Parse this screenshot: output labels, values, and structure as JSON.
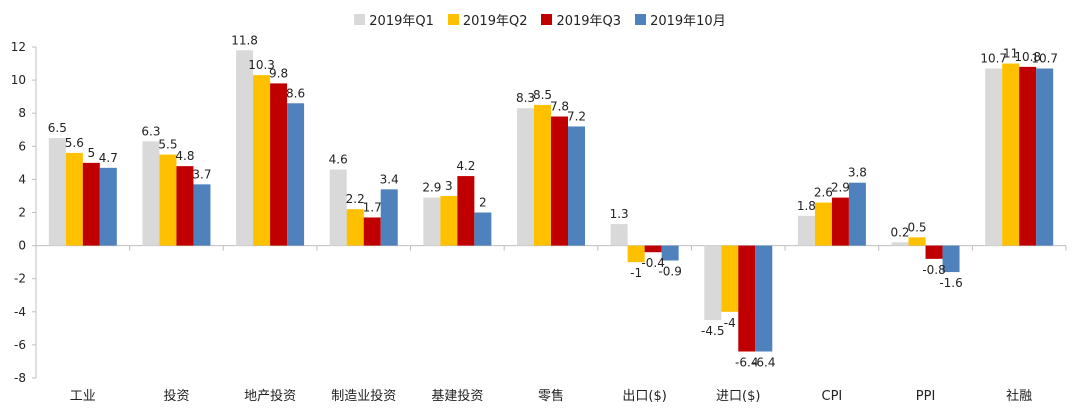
{
  "chart_data": {
    "type": "bar",
    "categories": [
      "工业",
      "投资",
      "地产投资",
      "制造业投资",
      "基建投资",
      "零售",
      "出口($)",
      "进口($)",
      "CPI",
      "PPI",
      "社融"
    ],
    "series": [
      {
        "name": "2019年Q1",
        "color": "#d9d9d9",
        "values": [
          6.5,
          6.3,
          11.8,
          4.6,
          2.9,
          8.3,
          1.3,
          -4.5,
          1.8,
          0.2,
          10.7
        ],
        "labels": [
          "6.5",
          "6.3",
          "11.8",
          "4.6",
          "2.9",
          "8.3",
          "1.3",
          "-4.5",
          "1.8",
          "0.2",
          "10.7"
        ]
      },
      {
        "name": "2019年Q2",
        "color": "#ffc000",
        "values": [
          5.6,
          5.5,
          10.3,
          2.2,
          3.0,
          8.5,
          -1.0,
          -4.0,
          2.6,
          0.5,
          11.0
        ],
        "labels": [
          "5.6",
          "5.5",
          "10.3",
          "2.2",
          "3",
          "8.5",
          "-1",
          "-4",
          "2.6",
          "0.5",
          "11"
        ]
      },
      {
        "name": "2019年Q3",
        "color": "#c00000",
        "values": [
          5.0,
          4.8,
          9.8,
          1.7,
          4.2,
          7.8,
          -0.4,
          -6.4,
          2.9,
          -0.8,
          10.8
        ],
        "labels": [
          "5",
          "4.8",
          "9.8",
          "1.7",
          "4.2",
          "7.8",
          "-0.4",
          "-6.4",
          "2.9",
          "-0.8",
          "10.8"
        ]
      },
      {
        "name": "2019年10月",
        "color": "#4f81bd",
        "values": [
          4.7,
          3.7,
          8.6,
          3.4,
          2.0,
          7.2,
          -0.9,
          -6.4,
          3.8,
          -1.6,
          10.7
        ],
        "labels": [
          "4.7",
          "3.7",
          "8.6",
          "3.4",
          "2",
          "7.2",
          "-0.9",
          "-6.4",
          "3.8",
          "-1.6",
          "10.7"
        ]
      }
    ],
    "yticks": [
      "12",
      "10",
      "8",
      "6",
      "4",
      "2",
      "0",
      "-2",
      "-4",
      "-6",
      "-8"
    ],
    "ylim": [
      -8,
      12
    ],
    "legend_position": "top-center",
    "grid": false
  }
}
